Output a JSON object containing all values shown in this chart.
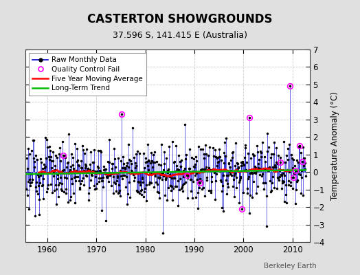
{
  "title": "CASTERTON SHOWGROUNDS",
  "subtitle": "37.596 S, 141.415 E (Australia)",
  "ylabel": "Temperature Anomaly (°C)",
  "credit": "Berkeley Earth",
  "ylim": [
    -4,
    7
  ],
  "yticks": [
    -4,
    -3,
    -2,
    -1,
    0,
    1,
    2,
    3,
    4,
    5,
    6,
    7
  ],
  "xlim": [
    1955.5,
    2013.5
  ],
  "xticks": [
    1960,
    1970,
    1980,
    1990,
    2000,
    2010
  ],
  "start_year": 1955.75,
  "months": 684,
  "bg_color": "#e0e0e0",
  "plot_bg_color": "#ffffff",
  "line_color": "#0000cc",
  "dot_color": "#000000",
  "ma_color": "#ff0000",
  "trend_color": "#00bb00",
  "qc_color": "#ff00ff",
  "legend_labels": [
    "Raw Monthly Data",
    "Quality Control Fail",
    "Five Year Moving Average",
    "Long-Term Trend"
  ]
}
